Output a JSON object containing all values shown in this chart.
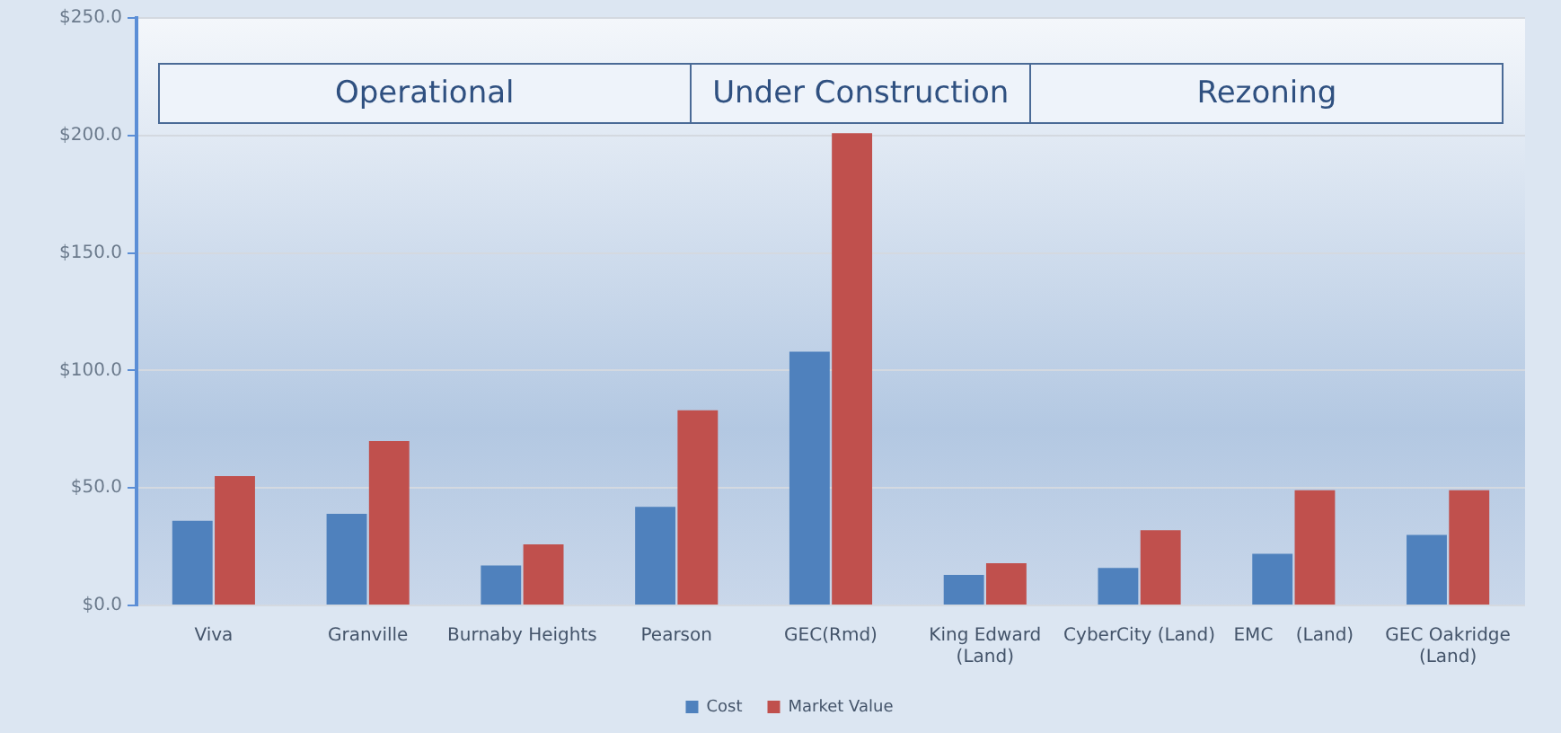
{
  "chart_data": {
    "type": "bar",
    "categories": [
      "Viva",
      "Granville",
      "Burnaby Heights",
      "Pearson",
      "GEC(Rmd)",
      "King Edward (Land)",
      "CyberCity (Land)",
      "EMC    (Land)",
      "GEC Oakridge (Land)"
    ],
    "series": [
      {
        "name": "Cost",
        "color": "#4f81bd",
        "values": [
          36,
          39,
          17,
          42,
          108,
          13,
          16,
          22,
          30
        ]
      },
      {
        "name": "Market Value",
        "color": "#c0504d",
        "values": [
          55,
          70,
          26,
          83,
          201,
          18,
          32,
          49,
          49
        ]
      }
    ],
    "ylim": [
      0,
      250
    ],
    "yticks": [
      {
        "value": 0,
        "label": "$0.0"
      },
      {
        "value": 50,
        "label": "$50.0"
      },
      {
        "value": 100,
        "label": "$100.0"
      },
      {
        "value": 150,
        "label": "$150.0"
      },
      {
        "value": 200,
        "label": "$200.0"
      },
      {
        "value": 250,
        "label": "$250.0"
      }
    ],
    "annotations": [
      "Operational",
      "Under Construction",
      "Rezoning"
    ],
    "grid": "y",
    "legend": "bottom"
  }
}
